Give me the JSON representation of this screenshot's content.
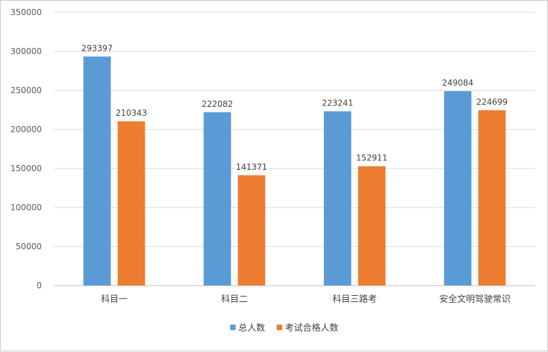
{
  "chart_data": {
    "type": "bar",
    "categories": [
      "科目一",
      "科目二",
      "科目三路考",
      "安全文明驾驶常识"
    ],
    "series": [
      {
        "name": "总人数",
        "values": [
          293397,
          222082,
          223241,
          249084
        ],
        "color": "#5b9bd5"
      },
      {
        "name": "考试合格人数",
        "values": [
          210343,
          141371,
          152911,
          224699
        ],
        "color": "#ed7d31"
      }
    ],
    "ylim": [
      0,
      350000
    ],
    "yticks": [
      0,
      50000,
      100000,
      150000,
      200000,
      250000,
      300000,
      350000
    ],
    "grid": true,
    "legend_position": "bottom",
    "data_labels": true
  }
}
